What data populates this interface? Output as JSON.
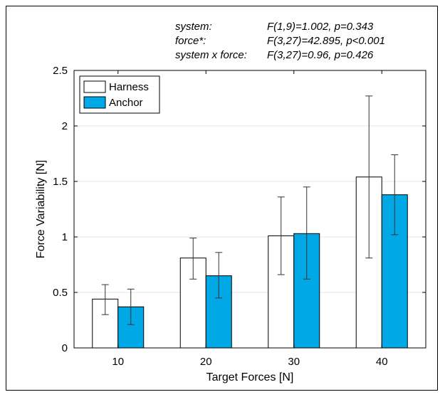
{
  "stats": [
    {
      "label": "system:",
      "value": "F(1,9)=1.002, p=0.343"
    },
    {
      "label": "force*:",
      "value": "F(3,27)=42.895, p<0.001"
    },
    {
      "label": "system x force:",
      "value": "F(3,27)=0.96, p=0.426"
    }
  ],
  "chart_data": {
    "type": "bar",
    "title": "",
    "xlabel": "Target Forces [N]",
    "ylabel": "Force Variability [N]",
    "categories": [
      "10",
      "20",
      "30",
      "40"
    ],
    "ylim": [
      0,
      2.5
    ],
    "yticks": [
      "0",
      "0.5",
      "1",
      "1.5",
      "2",
      "2.5"
    ],
    "grid": true,
    "legend_position": "top-left",
    "series": [
      {
        "name": "Harness",
        "color": "#ffffff",
        "values": [
          0.44,
          0.81,
          1.01,
          1.54
        ],
        "err_low": [
          0.3,
          0.62,
          0.66,
          0.81
        ],
        "err_high": [
          0.57,
          0.99,
          1.36,
          2.27
        ]
      },
      {
        "name": "Anchor",
        "color": "#00a8e6",
        "values": [
          0.37,
          0.65,
          1.03,
          1.38
        ],
        "err_low": [
          0.21,
          0.45,
          0.62,
          1.02
        ],
        "err_high": [
          0.53,
          0.86,
          1.45,
          1.74
        ]
      }
    ]
  }
}
